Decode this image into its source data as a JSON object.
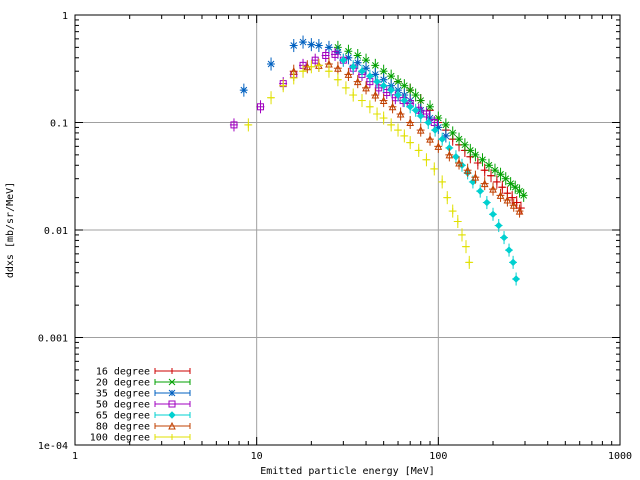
{
  "chart_data": {
    "type": "scatter",
    "xlabel": "Emitted particle energy [MeV]",
    "ylabel": "ddxs [mb/sr/MeV]",
    "xscale": "log",
    "yscale": "log",
    "xlim": [
      1,
      1000
    ],
    "ylim": [
      0.0001,
      1
    ],
    "grid": true,
    "legend_position": "bottom-left",
    "x_ticks": [
      {
        "value": 1,
        "label": "1"
      },
      {
        "value": 10,
        "label": "10"
      },
      {
        "value": 100,
        "label": "100"
      },
      {
        "value": 1000,
        "label": "1000"
      }
    ],
    "y_ticks": [
      {
        "value": 0.0001,
        "label": "1e-04"
      },
      {
        "value": 0.001,
        "label": "0.001"
      },
      {
        "value": 0.01,
        "label": "0.01"
      },
      {
        "value": 0.1,
        "label": "0.1"
      },
      {
        "value": 1,
        "label": "1"
      }
    ],
    "series": [
      {
        "name": "16 degree",
        "color": "#cc0000",
        "marker": "plus",
        "points": [
          [
            60,
            0.24
          ],
          [
            70,
            0.2
          ],
          [
            80,
            0.16
          ],
          [
            90,
            0.13
          ],
          [
            100,
            0.1
          ],
          [
            110,
            0.085
          ],
          [
            120,
            0.07
          ],
          [
            130,
            0.062
          ],
          [
            140,
            0.055
          ],
          [
            150,
            0.048
          ],
          [
            165,
            0.042
          ],
          [
            180,
            0.036
          ],
          [
            195,
            0.032
          ],
          [
            210,
            0.028
          ],
          [
            225,
            0.025
          ],
          [
            240,
            0.022
          ],
          [
            255,
            0.02
          ],
          [
            270,
            0.018
          ],
          [
            285,
            0.016
          ]
        ]
      },
      {
        "name": "20 degree",
        "color": "#00a000",
        "marker": "x",
        "points": [
          [
            28,
            0.5
          ],
          [
            32,
            0.46
          ],
          [
            36,
            0.42
          ],
          [
            40,
            0.38
          ],
          [
            45,
            0.34
          ],
          [
            50,
            0.3
          ],
          [
            55,
            0.27
          ],
          [
            60,
            0.24
          ],
          [
            65,
            0.22
          ],
          [
            70,
            0.2
          ],
          [
            75,
            0.18
          ],
          [
            80,
            0.16
          ],
          [
            90,
            0.14
          ],
          [
            100,
            0.11
          ],
          [
            110,
            0.095
          ],
          [
            120,
            0.08
          ],
          [
            130,
            0.07
          ],
          [
            140,
            0.062
          ],
          [
            150,
            0.055
          ],
          [
            160,
            0.05
          ],
          [
            175,
            0.045
          ],
          [
            190,
            0.04
          ],
          [
            205,
            0.036
          ],
          [
            220,
            0.033
          ],
          [
            235,
            0.03
          ],
          [
            250,
            0.027
          ],
          [
            265,
            0.025
          ],
          [
            280,
            0.023
          ],
          [
            295,
            0.021
          ]
        ]
      },
      {
        "name": "35 degree",
        "color": "#0060c0",
        "marker": "star",
        "points": [
          [
            8.5,
            0.2
          ],
          [
            12,
            0.35
          ],
          [
            16,
            0.52
          ],
          [
            18,
            0.56
          ],
          [
            20,
            0.53
          ],
          [
            22,
            0.52
          ],
          [
            25,
            0.5
          ],
          [
            28,
            0.45
          ],
          [
            32,
            0.4
          ],
          [
            36,
            0.36
          ],
          [
            40,
            0.32
          ],
          [
            45,
            0.28
          ],
          [
            50,
            0.25
          ],
          [
            55,
            0.22
          ],
          [
            60,
            0.2
          ],
          [
            65,
            0.18
          ],
          [
            70,
            0.16
          ],
          [
            80,
            0.13
          ],
          [
            90,
            0.11
          ],
          [
            100,
            0.09
          ],
          [
            110,
            0.075
          ]
        ]
      },
      {
        "name": "50 degree",
        "color": "#a000c0",
        "marker": "square",
        "points": [
          [
            7.5,
            0.095
          ],
          [
            10.5,
            0.14
          ],
          [
            14,
            0.23
          ],
          [
            16,
            0.28
          ],
          [
            18,
            0.34
          ],
          [
            21,
            0.38
          ],
          [
            24,
            0.42
          ],
          [
            27,
            0.43
          ],
          [
            30,
            0.38
          ],
          [
            34,
            0.32
          ],
          [
            38,
            0.28
          ],
          [
            42,
            0.24
          ],
          [
            47,
            0.21
          ],
          [
            52,
            0.19
          ],
          [
            58,
            0.17
          ],
          [
            64,
            0.16
          ],
          [
            70,
            0.15
          ],
          [
            78,
            0.13
          ],
          [
            86,
            0.12
          ],
          [
            95,
            0.1
          ]
        ]
      },
      {
        "name": "65 degree",
        "color": "#00d0d0",
        "marker": "diamond",
        "points": [
          [
            30,
            0.38
          ],
          [
            34,
            0.33
          ],
          [
            38,
            0.3
          ],
          [
            42,
            0.27
          ],
          [
            46,
            0.24
          ],
          [
            50,
            0.22
          ],
          [
            55,
            0.2
          ],
          [
            60,
            0.18
          ],
          [
            65,
            0.16
          ],
          [
            70,
            0.14
          ],
          [
            75,
            0.13
          ],
          [
            80,
            0.115
          ],
          [
            88,
            0.1
          ],
          [
            96,
            0.085
          ],
          [
            105,
            0.07
          ],
          [
            115,
            0.058
          ],
          [
            125,
            0.048
          ],
          [
            135,
            0.04
          ],
          [
            145,
            0.034
          ],
          [
            155,
            0.028
          ],
          [
            170,
            0.023
          ],
          [
            185,
            0.018
          ],
          [
            200,
            0.014
          ],
          [
            215,
            0.011
          ],
          [
            230,
            0.0085
          ],
          [
            245,
            0.0065
          ],
          [
            258,
            0.005
          ],
          [
            268,
            0.0035
          ]
        ]
      },
      {
        "name": "80 degree",
        "color": "#c04000",
        "marker": "triangle",
        "points": [
          [
            16,
            0.3
          ],
          [
            19,
            0.33
          ],
          [
            22,
            0.34
          ],
          [
            25,
            0.35
          ],
          [
            28,
            0.32
          ],
          [
            32,
            0.28
          ],
          [
            36,
            0.24
          ],
          [
            40,
            0.21
          ],
          [
            45,
            0.18
          ],
          [
            50,
            0.16
          ],
          [
            56,
            0.14
          ],
          [
            62,
            0.12
          ],
          [
            70,
            0.1
          ],
          [
            80,
            0.085
          ],
          [
            90,
            0.07
          ],
          [
            100,
            0.06
          ],
          [
            115,
            0.05
          ],
          [
            130,
            0.042
          ],
          [
            145,
            0.036
          ],
          [
            160,
            0.031
          ],
          [
            180,
            0.027
          ],
          [
            200,
            0.024
          ],
          [
            220,
            0.021
          ],
          [
            240,
            0.019
          ],
          [
            260,
            0.017
          ],
          [
            280,
            0.015
          ]
        ]
      },
      {
        "name": "100 degree",
        "color": "#e0e000",
        "marker": "plus",
        "points": [
          [
            9,
            0.095
          ],
          [
            12,
            0.17
          ],
          [
            14,
            0.22
          ],
          [
            16,
            0.26
          ],
          [
            18,
            0.3
          ],
          [
            20,
            0.33
          ],
          [
            22,
            0.34
          ],
          [
            25,
            0.3
          ],
          [
            28,
            0.25
          ],
          [
            31,
            0.21
          ],
          [
            34,
            0.18
          ],
          [
            38,
            0.16
          ],
          [
            42,
            0.14
          ],
          [
            46,
            0.12
          ],
          [
            50,
            0.11
          ],
          [
            55,
            0.095
          ],
          [
            60,
            0.085
          ],
          [
            65,
            0.075
          ],
          [
            70,
            0.065
          ],
          [
            78,
            0.055
          ],
          [
            86,
            0.045
          ],
          [
            95,
            0.037
          ],
          [
            105,
            0.028
          ],
          [
            112,
            0.02
          ],
          [
            120,
            0.015
          ],
          [
            128,
            0.012
          ],
          [
            135,
            0.009
          ],
          [
            142,
            0.007
          ],
          [
            148,
            0.005
          ]
        ]
      }
    ]
  }
}
